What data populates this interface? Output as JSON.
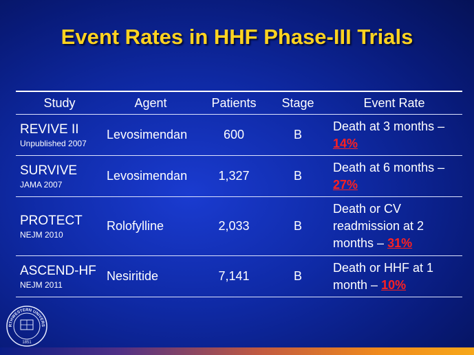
{
  "slide": {
    "title": "Event Rates in HHF Phase-III Trials"
  },
  "table": {
    "headers": {
      "study": "Study",
      "agent": "Agent",
      "patients": "Patients",
      "stage": "Stage",
      "event_rate": "Event Rate"
    },
    "rows": [
      {
        "study": "REVIVE II",
        "source": "Unpublished 2007",
        "agent": "Levosimendan",
        "patients": "600",
        "stage": "B",
        "rate_text": "Death at 3 months –",
        "rate_pct": "14%"
      },
      {
        "study": "SURVIVE",
        "source": "JAMA 2007",
        "agent": "Levosimendan",
        "patients": "1,327",
        "stage": "B",
        "rate_text": "Death at 6 months –",
        "rate_pct": "27%"
      },
      {
        "study": "PROTECT",
        "source": "NEJM 2010",
        "agent": "Rolofylline",
        "patients": "2,033",
        "stage": "B",
        "rate_text": "Death or CV readmission at 2 months –",
        "rate_pct": "31%"
      },
      {
        "study": "ASCEND-HF",
        "source": "NEJM 2011",
        "agent": "Nesiritide",
        "patients": "7,141",
        "stage": "B",
        "rate_text": "Death or HHF at 1 month –",
        "rate_pct": "10%"
      }
    ]
  },
  "logo": {
    "text_top": "NORTHWESTERN UNIVERSITY",
    "year": "1851"
  },
  "colors": {
    "title": "#ffd320",
    "highlight": "#ff2020",
    "background": "#0f2aa6"
  }
}
